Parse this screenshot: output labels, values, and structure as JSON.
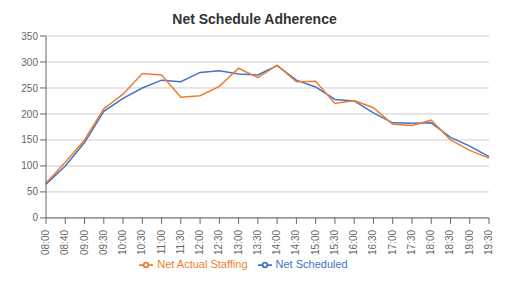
{
  "chart_data": {
    "type": "line",
    "title": "Net Schedule Adherence",
    "categories": [
      "08:00",
      "08:40",
      "09:00",
      "09:30",
      "10:00",
      "10:30",
      "11:00",
      "11:30",
      "12:00",
      "12:30",
      "13:00",
      "13:30",
      "14:00",
      "14:30",
      "15:00",
      "15:30",
      "16:00",
      "16:30",
      "17:00",
      "17:30",
      "18:00",
      "18:30",
      "19:00",
      "19:30"
    ],
    "series": [
      {
        "name": "Net Scheduled",
        "color": "#4472C4",
        "values": [
          65,
          100,
          145,
          205,
          230,
          250,
          265,
          262,
          280,
          283,
          277,
          275,
          293,
          265,
          252,
          228,
          225,
          202,
          183,
          182,
          183,
          155,
          138,
          118
        ]
      },
      {
        "name": "Net Actual Staffing",
        "color": "#ED7D31",
        "values": [
          67,
          107,
          150,
          210,
          238,
          278,
          275,
          232,
          235,
          253,
          288,
          270,
          294,
          262,
          263,
          220,
          226,
          212,
          180,
          178,
          188,
          150,
          130,
          115
        ]
      }
    ],
    "ylim": [
      0,
      350
    ],
    "yticks": [
      0,
      50,
      100,
      150,
      200,
      250,
      300,
      350
    ],
    "grid": "y",
    "legend": "bottom"
  }
}
